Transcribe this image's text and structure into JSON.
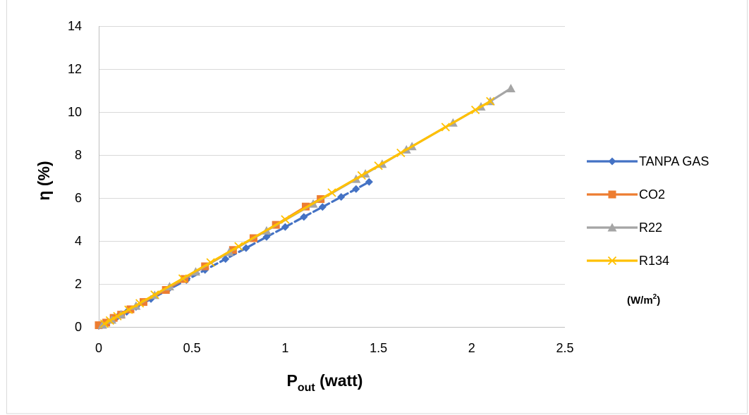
{
  "chart_data": {
    "type": "line",
    "xlabel": {
      "main": "P",
      "sub": "out",
      "rest": " (watt)"
    },
    "ylabel": "η (%)",
    "xlim": [
      0,
      2.5
    ],
    "ylim": [
      0,
      14
    ],
    "xticks": [
      0,
      0.5,
      1,
      1.5,
      2,
      2.5
    ],
    "xtick_labels": [
      "0",
      "0.5",
      "1",
      "1.5",
      "2",
      "2.5"
    ],
    "yticks": [
      0,
      2,
      4,
      6,
      8,
      10,
      12,
      14
    ],
    "ytick_labels": [
      "0",
      "2",
      "4",
      "6",
      "8",
      "10",
      "12",
      "14"
    ],
    "grid": "horizontal",
    "legend_position": "right",
    "unit_note": {
      "main": "(W/m",
      "sup": "2",
      "close": ")"
    },
    "series": [
      {
        "name": "TANPA GAS",
        "color": "#4472C4",
        "marker": "diamond",
        "dashed": true,
        "x": [
          0.0,
          0.05,
          0.1,
          0.15,
          0.2,
          0.28,
          0.37,
          0.47,
          0.57,
          0.68,
          0.79,
          0.9,
          1.0,
          1.1,
          1.2,
          1.3,
          1.38,
          1.45
        ],
        "y": [
          0.05,
          0.25,
          0.47,
          0.7,
          0.93,
          1.3,
          1.72,
          2.18,
          2.65,
          3.16,
          3.67,
          4.19,
          4.65,
          5.12,
          5.58,
          6.05,
          6.42,
          6.75
        ]
      },
      {
        "name": "CO2",
        "color": "#ED7D31",
        "marker": "square",
        "dashed": false,
        "x": [
          0.0,
          0.04,
          0.08,
          0.12,
          0.17,
          0.24,
          0.36,
          0.46,
          0.57,
          0.72,
          0.83,
          0.95,
          1.11,
          1.19
        ],
        "y": [
          0.08,
          0.2,
          0.42,
          0.57,
          0.82,
          1.16,
          1.72,
          2.23,
          2.82,
          3.58,
          4.13,
          4.75,
          5.6,
          5.95
        ]
      },
      {
        "name": "R22",
        "color": "#A5A5A5",
        "marker": "triangle",
        "dashed": false,
        "x": [
          0.02,
          0.07,
          0.12,
          0.2,
          0.3,
          0.38,
          0.52,
          0.7,
          0.9,
          1.15,
          1.38,
          1.43,
          1.52,
          1.65,
          1.68,
          1.9,
          2.05,
          2.1,
          2.21
        ],
        "y": [
          0.1,
          0.33,
          0.58,
          0.98,
          1.48,
          1.88,
          2.57,
          3.48,
          4.48,
          5.73,
          6.88,
          7.13,
          7.58,
          8.25,
          8.4,
          9.5,
          10.25,
          10.5,
          11.1
        ]
      },
      {
        "name": "R134",
        "color": "#FFC000",
        "marker": "x",
        "dashed": false,
        "x": [
          0.03,
          0.06,
          0.1,
          0.16,
          0.22,
          0.3,
          0.45,
          0.6,
          0.75,
          1.0,
          1.25,
          1.41,
          1.5,
          1.62,
          1.86,
          2.02,
          2.1
        ],
        "y": [
          0.15,
          0.3,
          0.5,
          0.8,
          1.1,
          1.5,
          2.25,
          3.0,
          3.75,
          5.0,
          6.25,
          7.05,
          7.5,
          8.1,
          9.3,
          10.1,
          10.5
        ]
      }
    ]
  }
}
